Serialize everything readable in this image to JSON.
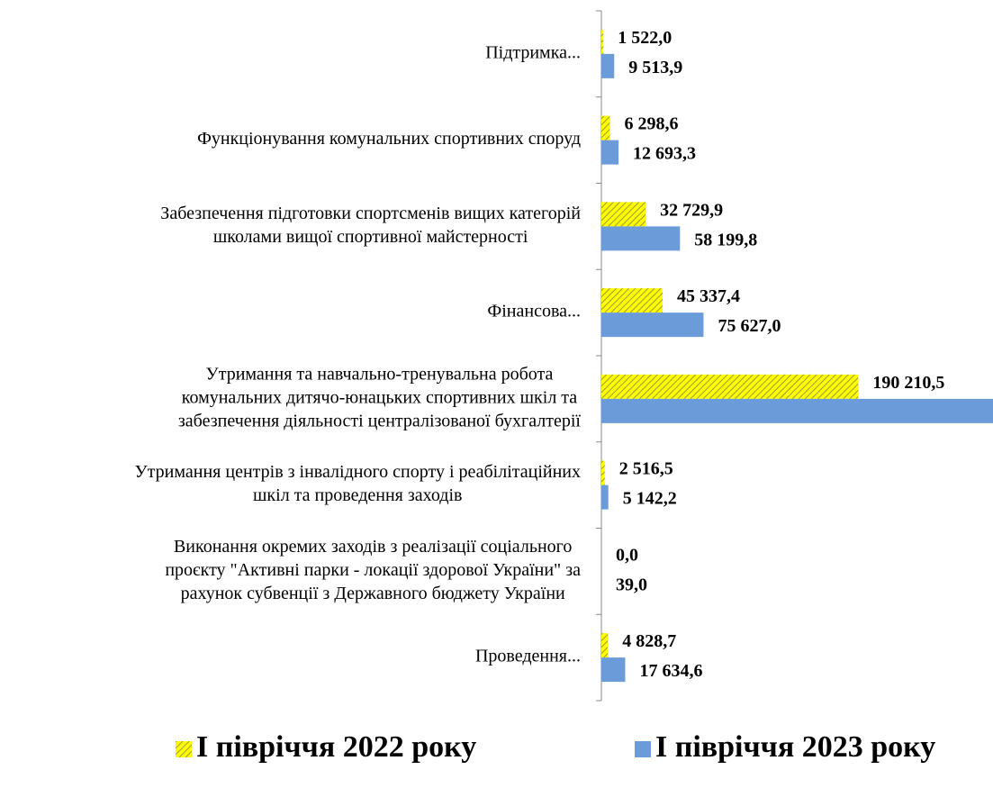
{
  "chart_data": {
    "type": "hbar",
    "categories": [
      [
        "Підтримка..."
      ],
      [
        "Функціонування комунальних спортивних споруд"
      ],
      [
        "Забезпечення підготовки спортсменів вищих категорій",
        "школами вищої спортивної майстерності"
      ],
      [
        "Фінансова..."
      ],
      [
        "Утримання та навчально-тренувальна робота",
        "комунальних дитячо-юнацьких спортивних шкіл та",
        "забезпечення діяльності централізованої бухгалтерії"
      ],
      [
        "Утримання центрів з інвалідного спорту і реабілітаційних",
        "шкіл та проведення заходів"
      ],
      [
        "Виконання окремих заходів з реалізації соціального",
        "проєкту \"Активні парки - локації здорової України\" за",
        "рахунок субвенції з Державного бюджету України"
      ],
      [
        "Проведення..."
      ]
    ],
    "series": [
      {
        "name": "І півріччя 2022 року",
        "color": "#ffff00",
        "pattern": "diagonal-hatch",
        "values": [
          1522.0,
          6298.6,
          32729.9,
          45337.4,
          190210.5,
          2516.5,
          0.0,
          4828.7
        ],
        "value_labels": [
          "1 522,0",
          "6 298,6",
          "32 729,9",
          "45 337,4",
          "190 210,5",
          "2 516,5",
          "0,0",
          "4 828,7"
        ]
      },
      {
        "name": "І півріччя 2023 року",
        "color": "#6c9bd9",
        "values": [
          9513.9,
          12693.3,
          58199.8,
          75627.0,
          300000,
          5142.2,
          39.0,
          17634.6
        ],
        "value_labels": [
          "9 513,9",
          "12 693,3",
          "58 199,8",
          "75 627,0",
          null,
          "5 142,2",
          "39,0",
          "17 634,6"
        ]
      }
    ],
    "xlim": [
      0,
      290000
    ],
    "legend": "bottom"
  }
}
